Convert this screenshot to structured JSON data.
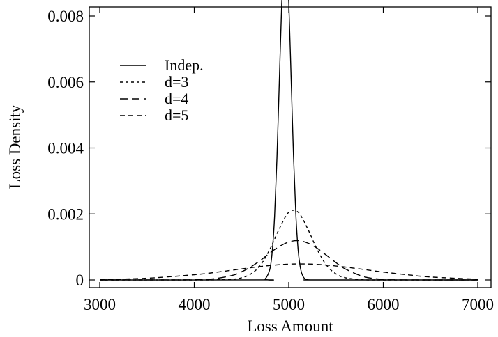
{
  "chart_data": {
    "type": "line",
    "title": "",
    "xlabel": "Loss Amount",
    "ylabel": "Loss Density",
    "xlim": [
      3000,
      7000
    ],
    "ylim": [
      0,
      0.008
    ],
    "x_ticks": [
      3000,
      4000,
      5000,
      6000,
      7000
    ],
    "x_tick_labels": [
      "3000",
      "4000",
      "5000",
      "6000",
      "7000"
    ],
    "y_ticks": [
      0,
      0.002,
      0.004,
      0.006,
      0.008
    ],
    "y_tick_labels": [
      "0",
      "0.002",
      "0.004",
      "0.006",
      "0.008"
    ],
    "grid": false,
    "legend_position": "top-left",
    "series": [
      {
        "name": "Indep.",
        "line_style": "solid",
        "x": [
          3000,
          4700,
          4750,
          4800,
          4825,
          4850,
          4875,
          4900,
          4925,
          4950,
          4975,
          5000,
          5025,
          5050,
          5075,
          5100,
          5125,
          5150,
          5175,
          5200,
          5250,
          5300,
          7000
        ],
        "y": [
          0,
          1.8e-06,
          2.89e-05,
          0.000326,
          0.000858,
          0.001928,
          0.003686,
          0.006003,
          0.008323,
          0.009821,
          0.009858,
          0.008424,
          0.006119,
          0.003781,
          0.001986,
          0.000887,
          0.000337,
          0.000109,
          2.99e-05,
          7e-06,
          3e-07,
          0,
          0
        ]
      },
      {
        "name": "d=3",
        "line_style": "short-dash",
        "x": [
          3000,
          4000,
          4200,
          4400,
          4500,
          4600,
          4700,
          4800,
          4900,
          5000,
          5100,
          5200,
          5300,
          5400,
          5500,
          5600,
          5800,
          6000,
          7000
        ],
        "y": [
          0,
          0,
          2e-06,
          2.2e-05,
          6.5e-05,
          0.000182,
          0.000444,
          0.000926,
          0.001552,
          0.00205,
          0.00205,
          0.001552,
          0.000926,
          0.000444,
          0.000182,
          6.5e-05,
          6e-06,
          0,
          0
        ]
      },
      {
        "name": "d=4",
        "line_style": "long-dash",
        "x": [
          3000,
          3800,
          4000,
          4200,
          4400,
          4500,
          4600,
          4700,
          4800,
          4900,
          5000,
          5100,
          5200,
          5300,
          5400,
          5500,
          5600,
          5800,
          6000,
          6200,
          7000
        ],
        "y": [
          0,
          2e-06,
          8e-06,
          3.4e-05,
          0.000135,
          0.000244,
          0.000398,
          0.000591,
          0.000816,
          0.001012,
          0.00115,
          0.001192,
          0.001119,
          0.00096,
          0.000745,
          0.000524,
          0.00033,
          9.4e-05,
          1.8e-05,
          2e-06,
          0
        ]
      },
      {
        "name": "d=5",
        "line_style": "medium-dash",
        "x": [
          3000,
          3500,
          4000,
          4250,
          4500,
          4750,
          5000,
          5250,
          5500,
          5750,
          6000,
          6250,
          6500,
          7000
        ],
        "y": [
          1.2e-05,
          5.2e-05,
          0.000158,
          0.000238,
          0.000334,
          0.000422,
          0.000478,
          0.000478,
          0.000422,
          0.000334,
          0.000238,
          0.000158,
          8.9e-05,
          2e-05
        ]
      }
    ]
  }
}
